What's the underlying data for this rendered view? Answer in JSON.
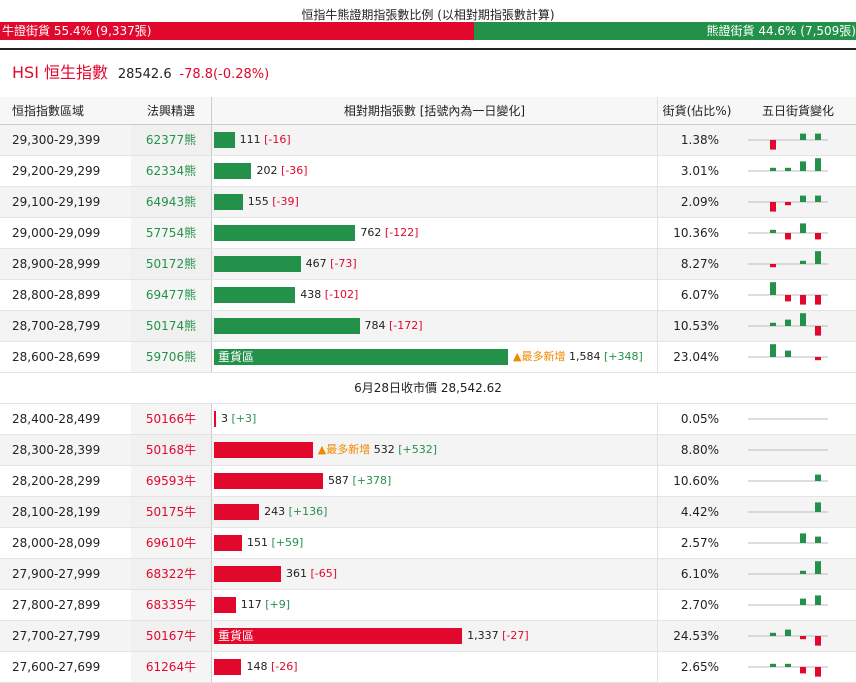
{
  "caption": "恒指牛熊證期指張數比例 (以相對期指張數計算)",
  "ratio": {
    "bull_label": "牛證街貨 55.4% (9,337張)",
    "bull_fraction": 0.554,
    "bear_label": "熊證街貨 44.6% (7,509張)",
    "bear_fraction": 0.446
  },
  "index": {
    "name": "HSI 恒生指數",
    "price": "28542.6",
    "change": "-78.8(-0.28%)"
  },
  "headers": {
    "range": "恒指指數區域",
    "code": "法興精選",
    "contracts": "相對期指張數 [括號內為一日變化]",
    "pct": "街貨(佔比%)",
    "spark": "五日街貨變化"
  },
  "max_contracts": 1584,
  "bear_rows": [
    {
      "range": "29,300-29,399",
      "code": "62377熊",
      "contracts": 111,
      "contracts_text": "111",
      "change": "[-16]",
      "change_sign": "neg",
      "pct": "1.38%",
      "heavy": "",
      "new": "",
      "spark": [
        -3,
        0,
        2,
        2,
        -1
      ]
    },
    {
      "range": "29,200-29,299",
      "code": "62334熊",
      "contracts": 202,
      "contracts_text": "202",
      "change": "[-36]",
      "change_sign": "neg",
      "pct": "3.01%",
      "heavy": "",
      "new": "",
      "spark": [
        1,
        1,
        3,
        4,
        -2
      ]
    },
    {
      "range": "29,100-29,199",
      "code": "64943熊",
      "contracts": 155,
      "contracts_text": "155",
      "change": "[-39]",
      "change_sign": "neg",
      "pct": "2.09%",
      "heavy": "",
      "new": "",
      "spark": [
        -3,
        -1,
        2,
        2,
        -2
      ]
    },
    {
      "range": "29,000-29,099",
      "code": "57754熊",
      "contracts": 762,
      "contracts_text": "762",
      "change": "[-122]",
      "change_sign": "neg",
      "pct": "10.36%",
      "heavy": "",
      "new": "",
      "spark": [
        1,
        -2,
        3,
        -2,
        -2
      ]
    },
    {
      "range": "28,900-28,999",
      "code": "50172熊",
      "contracts": 467,
      "contracts_text": "467",
      "change": "[-73]",
      "change_sign": "neg",
      "pct": "8.27%",
      "heavy": "",
      "new": "",
      "spark": [
        -1,
        0,
        1,
        4,
        -2
      ]
    },
    {
      "range": "28,800-28,899",
      "code": "69477熊",
      "contracts": 438,
      "contracts_text": "438",
      "change": "[-102]",
      "change_sign": "neg",
      "pct": "6.07%",
      "heavy": "",
      "new": "",
      "spark": [
        4,
        -2,
        -3,
        -3,
        -3
      ]
    },
    {
      "range": "28,700-28,799",
      "code": "50174熊",
      "contracts": 784,
      "contracts_text": "784",
      "change": "[-172]",
      "change_sign": "neg",
      "pct": "10.53%",
      "heavy": "",
      "new": "",
      "spark": [
        1,
        2,
        4,
        -3,
        -4
      ]
    },
    {
      "range": "28,600-28,699",
      "code": "59706熊",
      "contracts": 1584,
      "contracts_text": "1,584",
      "change": "[+348]",
      "change_sign": "pos",
      "pct": "23.04%",
      "heavy": "重貨區",
      "new": "▲最多新增",
      "spark": [
        4,
        2,
        0,
        -1,
        2
      ]
    }
  ],
  "close_text": "6月28日收市價 28,542.62",
  "bull_rows": [
    {
      "range": "28,400-28,499",
      "code": "50166牛",
      "contracts": 3,
      "contracts_text": "3",
      "change": "[+3]",
      "change_sign": "pos",
      "pct": "0.05%",
      "heavy": "",
      "new": "",
      "spark": [
        0,
        0,
        0,
        0,
        4
      ]
    },
    {
      "range": "28,300-28,399",
      "code": "50168牛",
      "contracts": 532,
      "contracts_text": "532",
      "change": "[+532]",
      "change_sign": "pos",
      "pct": "8.80%",
      "heavy": "",
      "new": "▲最多新增",
      "spark": [
        0,
        0,
        0,
        0,
        4
      ]
    },
    {
      "range": "28,200-28,299",
      "code": "69593牛",
      "contracts": 587,
      "contracts_text": "587",
      "change": "[+378]",
      "change_sign": "pos",
      "pct": "10.60%",
      "heavy": "",
      "new": "",
      "spark": [
        0,
        0,
        0,
        2,
        4
      ]
    },
    {
      "range": "28,100-28,199",
      "code": "50175牛",
      "contracts": 243,
      "contracts_text": "243",
      "change": "[+136]",
      "change_sign": "pos",
      "pct": "4.42%",
      "heavy": "",
      "new": "",
      "spark": [
        0,
        0,
        0,
        3,
        3
      ]
    },
    {
      "range": "28,000-28,099",
      "code": "69610牛",
      "contracts": 151,
      "contracts_text": "151",
      "change": "[+59]",
      "change_sign": "pos",
      "pct": "2.57%",
      "heavy": "",
      "new": "",
      "spark": [
        0,
        0,
        3,
        2,
        2
      ]
    },
    {
      "range": "27,900-27,999",
      "code": "68322牛",
      "contracts": 361,
      "contracts_text": "361",
      "change": "[-65]",
      "change_sign": "neg",
      "pct": "6.10%",
      "heavy": "",
      "new": "",
      "spark": [
        0,
        0,
        1,
        4,
        -1
      ]
    },
    {
      "range": "27,800-27,899",
      "code": "68335牛",
      "contracts": 117,
      "contracts_text": "117",
      "change": "[+9]",
      "change_sign": "pos",
      "pct": "2.70%",
      "heavy": "",
      "new": "",
      "spark": [
        0,
        0,
        2,
        3,
        2
      ]
    },
    {
      "range": "27,700-27,799",
      "code": "50167牛",
      "contracts": 1337,
      "contracts_text": "1,337",
      "change": "[-27]",
      "change_sign": "neg",
      "pct": "24.53%",
      "heavy": "重貨區",
      "new": "",
      "spark": [
        1,
        2,
        -1,
        -3,
        -1
      ]
    },
    {
      "range": "27,600-27,699",
      "code": "61264牛",
      "contracts": 148,
      "contracts_text": "148",
      "change": "[-26]",
      "change_sign": "neg",
      "pct": "2.65%",
      "heavy": "",
      "new": "",
      "spark": [
        1,
        1,
        -2,
        -3,
        -1
      ]
    }
  ],
  "colors": {
    "bull": "#e2072d",
    "bear": "#24914a",
    "new": "#f08a00"
  }
}
